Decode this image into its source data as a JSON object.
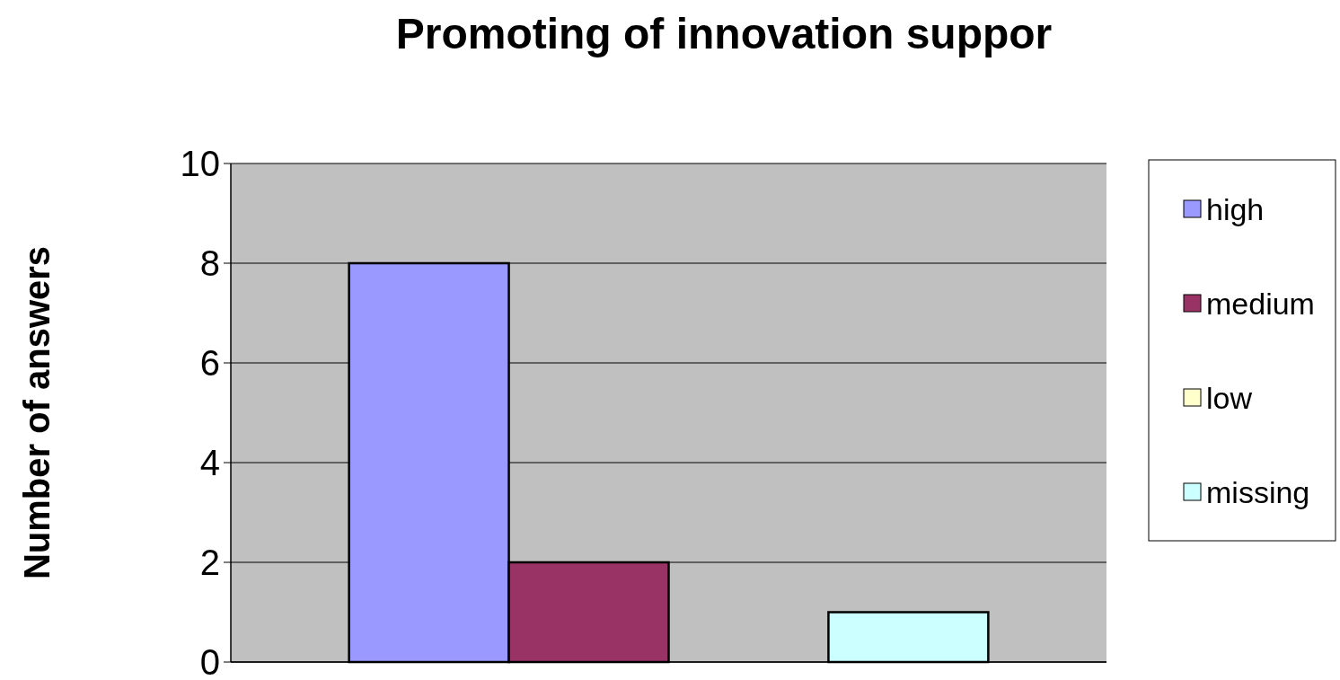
{
  "chart_data": {
    "type": "bar",
    "title": "Promoting of innovation suppor",
    "ylabel": "Number of answers",
    "categories": [
      null
    ],
    "series": [
      {
        "name": "high",
        "color": "#9999ff",
        "values": [
          8
        ]
      },
      {
        "name": "medium",
        "color": "#993366",
        "values": [
          2
        ]
      },
      {
        "name": "low",
        "color": "#ffffcc",
        "values": [
          0
        ]
      },
      {
        "name": "missing",
        "color": "#ccffff",
        "values": [
          1
        ]
      }
    ],
    "ylim": [
      0,
      10
    ],
    "yticks": [
      0,
      2,
      4,
      6,
      8,
      10
    ],
    "grid": "y",
    "legend": "right"
  }
}
